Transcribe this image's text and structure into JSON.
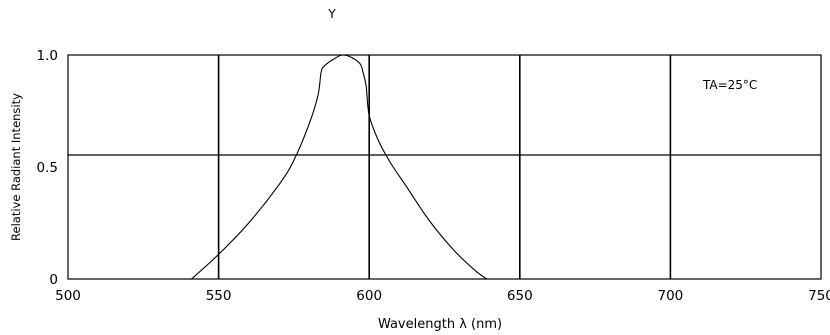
{
  "chart_data": {
    "type": "line",
    "title": "Y",
    "xlabel": "Wavelength  λ (nm)",
    "ylabel": "Relative Radiant Intensity",
    "xlim": [
      500,
      750
    ],
    "ylim": [
      0,
      1.0
    ],
    "x_ticks": [
      500,
      550,
      600,
      650,
      700,
      750
    ],
    "x_tick_labels": [
      "500",
      "550",
      "600",
      "650",
      "700",
      "750"
    ],
    "y_ticks": [
      0,
      0.5,
      1.0
    ],
    "y_tick_labels": [
      "0",
      "0.5",
      "1.0"
    ],
    "grid": true,
    "annotation": "TA=25°C",
    "series": [
      {
        "x": [
          541,
          550,
          560,
          570,
          575,
          580,
          583,
          584,
          585,
          588,
          591,
          594,
          597,
          598,
          599,
          600,
          603,
          607,
          612,
          620,
          628,
          635,
          639
        ],
        "y": [
          0.0,
          0.11,
          0.25,
          0.42,
          0.53,
          0.69,
          0.82,
          0.92,
          0.95,
          0.98,
          1.0,
          0.99,
          0.96,
          0.92,
          0.86,
          0.73,
          0.62,
          0.52,
          0.42,
          0.26,
          0.13,
          0.04,
          0.0
        ]
      }
    ]
  }
}
